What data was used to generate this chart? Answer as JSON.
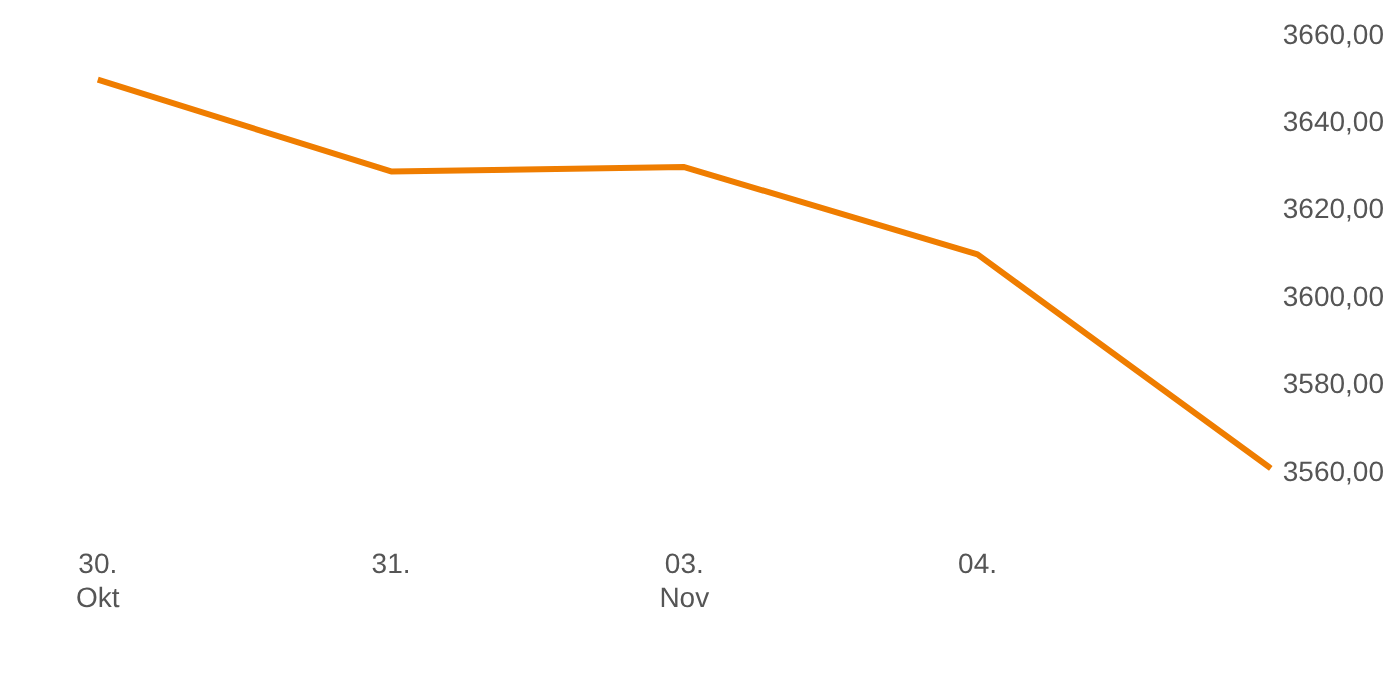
{
  "chart_data": {
    "type": "line",
    "categories": [
      "30.\nOkt",
      "31.",
      "03.\nNov",
      "04.",
      null
    ],
    "series": [
      {
        "color": "#ef7d00",
        "values": [
          3650,
          3629,
          3630,
          3610,
          3561
        ]
      }
    ],
    "ylim": [
      3560,
      3660
    ],
    "yticks": [
      {
        "value": 3560,
        "label": "3560,00"
      },
      {
        "value": 3580,
        "label": "3580,00"
      },
      {
        "value": 3600,
        "label": "3600,00"
      },
      {
        "value": 3620,
        "label": "3620,00"
      },
      {
        "value": 3640,
        "label": "3640,00"
      },
      {
        "value": 3660,
        "label": "3660,00"
      }
    ],
    "grid": false,
    "legend": false,
    "marker": "none",
    "line_style": "solid"
  }
}
